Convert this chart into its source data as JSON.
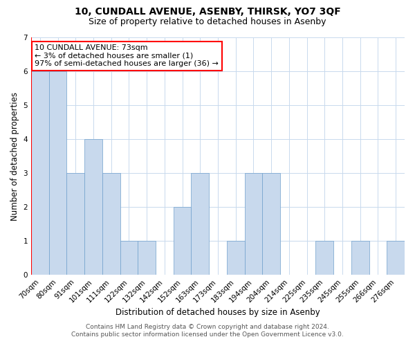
{
  "title": "10, CUNDALL AVENUE, ASENBY, THIRSK, YO7 3QF",
  "subtitle": "Size of property relative to detached houses in Asenby",
  "xlabel": "Distribution of detached houses by size in Asenby",
  "ylabel": "Number of detached properties",
  "categories": [
    "70sqm",
    "80sqm",
    "91sqm",
    "101sqm",
    "111sqm",
    "122sqm",
    "132sqm",
    "142sqm",
    "152sqm",
    "163sqm",
    "173sqm",
    "183sqm",
    "194sqm",
    "204sqm",
    "214sqm",
    "225sqm",
    "235sqm",
    "245sqm",
    "255sqm",
    "266sqm",
    "276sqm"
  ],
  "values": [
    6,
    6,
    3,
    4,
    3,
    1,
    1,
    0,
    2,
    3,
    0,
    1,
    3,
    3,
    0,
    0,
    1,
    0,
    1,
    0,
    1
  ],
  "bar_color": "#c8d9ed",
  "bar_edge_color": "#6fa0cc",
  "annotation_box_edge_color": "red",
  "annotation_text_line1": "10 CUNDALL AVENUE: 73sqm",
  "annotation_text_line2": "← 3% of detached houses are smaller (1)",
  "annotation_text_line3": "97% of semi-detached houses are larger (36) →",
  "vline_color": "red",
  "ylim": [
    0,
    7
  ],
  "yticks": [
    0,
    1,
    2,
    3,
    4,
    5,
    6,
    7
  ],
  "footer_line1": "Contains HM Land Registry data © Crown copyright and database right 2024.",
  "footer_line2": "Contains public sector information licensed under the Open Government Licence v3.0.",
  "bg_color": "#ffffff",
  "grid_color": "#c8d9ed",
  "title_fontsize": 10,
  "subtitle_fontsize": 9,
  "axis_label_fontsize": 8.5,
  "tick_fontsize": 7.5,
  "annotation_fontsize": 8,
  "footer_fontsize": 6.5
}
